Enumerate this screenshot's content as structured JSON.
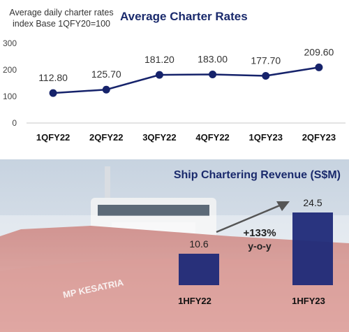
{
  "top_chart": {
    "subtitle": "Average daily charter rates index Base 1QFY20=100",
    "title": "Average Charter Rates",
    "chart_data": {
      "type": "line",
      "categories": [
        "1QFY22",
        "2QFY22",
        "3QFY22",
        "4QFY22",
        "1QFY23",
        "2QFY23"
      ],
      "values": [
        112.8,
        125.7,
        181.2,
        183.0,
        177.7,
        209.6
      ],
      "value_labels": [
        "112.80",
        "125.70",
        "181.20",
        "183.00",
        "177.70",
        "209.60"
      ],
      "yticks": [
        "0",
        "100",
        "200",
        "300"
      ],
      "ylim": [
        0,
        300
      ],
      "line_color": "#16236b"
    }
  },
  "bottom_chart": {
    "title": "Ship Chartering Revenue (S$M)",
    "ship_name": "MP KESATRIA",
    "chart_data": {
      "type": "bar",
      "categories": [
        "1HFY22",
        "1HFY23"
      ],
      "values": [
        10.6,
        24.5
      ],
      "value_labels": [
        "10.6",
        "24.5"
      ],
      "bar_color": "#1f2a78"
    },
    "growth_label": "+133%",
    "growth_sub": "y-o-y"
  }
}
